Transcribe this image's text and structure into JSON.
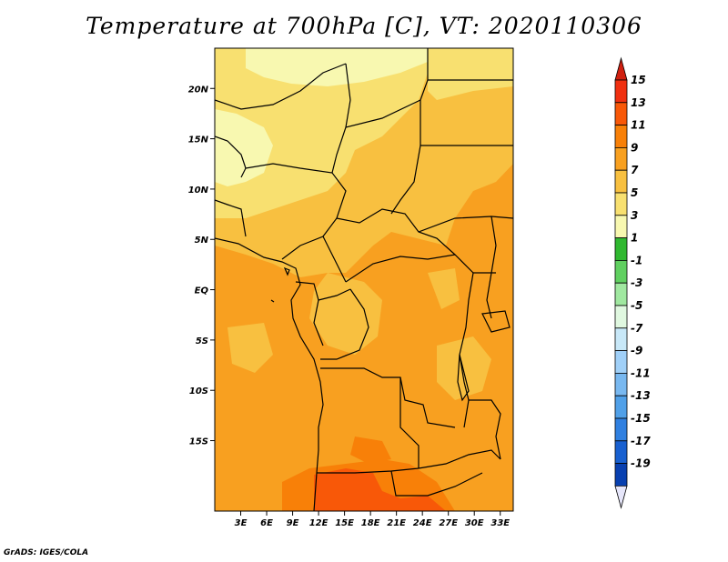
{
  "title": "Temperature at 700hPa [C], VT: 2020110306",
  "credit": "GrADS: IGES/COLA",
  "map": {
    "lon_range": [
      0,
      34.5
    ],
    "lat_range": [
      -22,
      24
    ],
    "lon_ticks": [
      {
        "lon": 3,
        "label": "3E"
      },
      {
        "lon": 6,
        "label": "6E"
      },
      {
        "lon": 9,
        "label": "9E"
      },
      {
        "lon": 12,
        "label": "12E"
      },
      {
        "lon": 15,
        "label": "15E"
      },
      {
        "lon": 18,
        "label": "18E"
      },
      {
        "lon": 21,
        "label": "21E"
      },
      {
        "lon": 24,
        "label": "24E"
      },
      {
        "lon": 27,
        "label": "27E"
      },
      {
        "lon": 30,
        "label": "30E"
      },
      {
        "lon": 33,
        "label": "33E"
      }
    ],
    "lat_ticks": [
      {
        "lat": 20,
        "label": "20N"
      },
      {
        "lat": 15,
        "label": "15N"
      },
      {
        "lat": 10,
        "label": "10N"
      },
      {
        "lat": 5,
        "label": "5N"
      },
      {
        "lat": 0,
        "label": "EQ"
      },
      {
        "lat": -5,
        "label": "5S"
      },
      {
        "lat": -10,
        "label": "10S"
      },
      {
        "lat": -15,
        "label": "15S"
      }
    ]
  },
  "colorbar": {
    "labels": [
      "15",
      "13",
      "11",
      "9",
      "7",
      "5",
      "3",
      "1",
      "-1",
      "-3",
      "-5",
      "-7",
      "-9",
      "-11",
      "-13",
      "-15",
      "-17",
      "-19"
    ],
    "top_color": "#d02010",
    "bottom_color": "#e6e6fa",
    "colors": [
      "#f03010",
      "#f85808",
      "#f88008",
      "#f8a020",
      "#f8c040",
      "#f8e070",
      "#f8f8b0",
      "#30b830",
      "#60d060",
      "#a0e8a0",
      "#e0f8e0",
      "#c8e8f8",
      "#a0d0f8",
      "#78b8f0",
      "#50a0e8",
      "#3080e0",
      "#1860d0",
      "#0840b0",
      "#081878"
    ]
  }
}
